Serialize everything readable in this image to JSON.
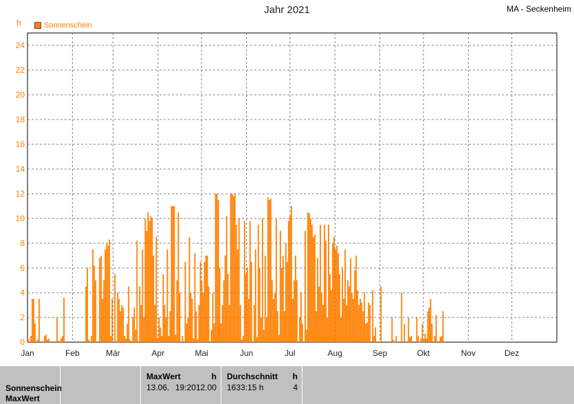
{
  "title": "Jahr 2021",
  "station": "MA - Seckenheim",
  "unit": "h",
  "legend": "Sonnenschein",
  "colors": {
    "series": "#ff7f00",
    "grid": "#808080",
    "axis": "#000000"
  },
  "y_ticks": [
    "0",
    "2",
    "4",
    "6",
    "8",
    "10",
    "12",
    "14",
    "16",
    "18",
    "20",
    "22",
    "24"
  ],
  "x_ticks": [
    "Jan",
    "Feb",
    "Mär",
    "Apr",
    "Mai",
    "Jun",
    "Jul",
    "Aug",
    "Sep",
    "Okt",
    "Nov",
    "Dez"
  ],
  "chart_data": {
    "type": "bar",
    "title": "Jahr 2021",
    "ylabel": "h",
    "ylim": [
      0,
      25
    ],
    "grid": true,
    "legend_placement": "top-left",
    "series": [
      {
        "name": "Sonnenschein",
        "values": [
          0.3,
          0,
          0.5,
          3.5,
          3.5,
          1.5,
          0,
          0.2,
          3.5,
          0,
          0,
          0,
          0.5,
          0.6,
          0.2,
          0.3,
          0,
          0,
          0,
          0,
          0,
          2,
          0.1,
          0,
          0.3,
          0.5,
          3.6,
          0,
          0,
          0,
          0,
          0,
          0,
          0,
          0.1,
          0,
          0,
          0,
          0,
          0,
          0,
          0,
          4.5,
          6,
          0.2,
          0,
          0.5,
          7.5,
          6.2,
          5,
          0,
          0,
          6.8,
          7,
          3.5,
          5,
          7.5,
          8,
          7.8,
          8.3,
          0.5,
          3.5,
          0,
          5.5,
          0,
          4,
          3.5,
          2.5,
          3,
          2.8,
          0.5,
          0.3,
          1.5,
          4.5,
          0.2,
          0,
          2,
          2.8,
          1,
          8.2,
          0,
          4.5,
          3,
          7.5,
          2,
          10,
          9,
          10.5,
          9.8,
          10.2,
          10,
          7,
          3,
          8.5,
          0.3,
          2,
          1.2,
          0.5,
          5.5,
          3,
          2,
          7.5,
          0.5,
          2.5,
          11,
          11,
          11,
          0.6,
          5,
          10.5,
          4,
          0,
          0.5,
          0,
          6.5,
          1.5,
          2,
          8.5,
          4,
          3.5,
          0.3,
          7.2,
          2.5,
          0.2,
          3,
          6.5,
          5,
          4,
          6.5,
          7,
          7,
          4.5,
          0,
          1,
          4,
          1.5,
          12,
          12,
          11.5,
          6,
          1.5,
          3,
          5,
          7,
          10.2,
          5.5,
          3,
          12,
          12,
          11.8,
          12,
          9.5,
          7.5,
          10,
          3,
          0.2,
          0.5,
          9.8,
          5.5,
          6,
          3.5,
          9.8,
          6.5,
          0,
          3,
          7.5,
          0.4,
          9.5,
          6,
          2,
          10,
          1,
          7,
          2,
          11.7,
          11.5,
          11.6,
          5,
          3.5,
          4,
          10,
          2.5,
          0.6,
          9,
          6,
          7,
          2.5,
          8,
          6.5,
          9.8,
          10.2,
          11,
          3.5,
          5,
          7,
          5,
          0,
          2,
          4,
          1.5,
          0,
          9,
          1,
          10.5,
          10.4,
          10,
          9.5,
          8.5,
          8.7,
          2.5,
          6.8,
          4.5,
          9.5,
          4,
          3,
          9.5,
          8.2,
          2,
          9.5,
          5.5,
          4.2,
          8,
          8.5,
          7.5,
          7.8,
          7.2,
          5.5,
          2,
          6,
          3.5,
          7.5,
          3,
          5,
          4.5,
          6.8,
          4,
          3.5,
          5.8,
          7,
          4.2,
          3,
          3.5,
          3.2,
          2.5,
          4,
          1.5,
          1.6,
          3.2,
          3,
          0,
          4.2,
          0.5,
          1.2,
          0,
          0,
          0,
          4.5,
          0,
          0,
          0,
          0,
          0,
          0,
          0,
          2,
          0.2,
          0,
          0.5,
          0,
          0,
          0,
          4,
          0,
          1.5,
          0,
          0,
          2,
          0.4,
          0.5,
          0,
          0,
          0,
          2,
          0.5,
          0,
          0.3,
          1.5,
          0.2,
          0.7,
          0.3,
          2.5,
          2.8,
          3.5,
          1.5,
          0,
          0.5,
          2.2,
          0,
          0,
          0.4,
          0.5,
          2.5,
          0,
          0,
          0,
          0,
          0,
          0,
          0,
          0,
          0,
          0,
          0,
          0,
          0,
          0,
          0,
          0,
          0,
          0,
          0,
          0,
          0,
          0,
          0,
          0,
          0,
          0,
          0,
          0,
          0,
          0,
          0,
          0,
          0,
          0,
          0,
          0,
          0,
          0,
          0,
          0,
          0,
          0,
          0,
          0,
          0,
          0,
          0,
          0,
          0,
          0,
          0,
          0,
          0,
          0,
          0,
          0,
          0,
          0,
          0,
          0,
          0,
          0,
          0,
          0,
          0,
          0,
          0,
          0,
          0,
          0,
          0,
          0,
          0,
          0,
          0,
          0,
          0,
          0,
          0,
          0,
          0,
          0
        ]
      }
    ]
  },
  "footer": {
    "row_labels": [
      "Sonnenschein",
      "MaxWert"
    ],
    "maxwert": {
      "header": "MaxWert",
      "unit": "h",
      "date": "13.06.",
      "time": "19:20",
      "value": "12.00"
    },
    "durchschnitt": {
      "header": "Durchschnitt",
      "unit": "h",
      "value": "1633:15 h",
      "value2": "4"
    }
  }
}
